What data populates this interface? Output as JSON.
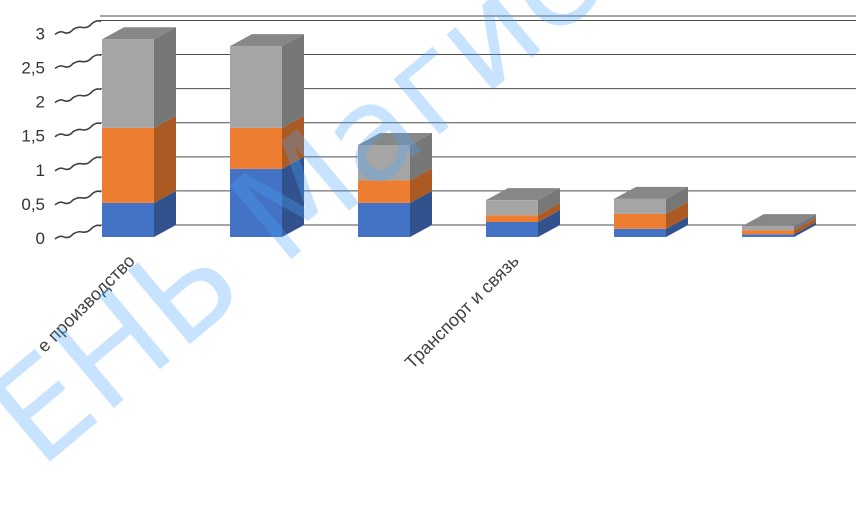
{
  "chart_data": {
    "type": "bar",
    "stacked": true,
    "three_d": true,
    "categories": [
      "",
      "",
      "",
      "",
      "",
      ""
    ],
    "x_tick_labels": [
      {
        "index": 0,
        "text": "е производство"
      },
      {
        "index": 3,
        "text": "Транспорт и связь"
      }
    ],
    "series": [
      {
        "color": "#4472c4",
        "values": [
          0.5,
          1.0,
          0.5,
          0.22,
          0.12,
          0.04
        ]
      },
      {
        "color": "#ed7d31",
        "values": [
          1.1,
          0.6,
          0.33,
          0.1,
          0.22,
          0.06
        ]
      },
      {
        "color": "#a5a5a5",
        "values": [
          1.3,
          1.2,
          0.52,
          0.22,
          0.22,
          0.06
        ]
      }
    ],
    "yticks": [
      "0",
      "0,5",
      "1",
      "1,5",
      "2",
      "2,5",
      "3"
    ],
    "ylim": [
      0,
      3.3
    ],
    "grid": true,
    "legend": "none",
    "title": "",
    "xlabel": "",
    "ylabel": ""
  },
  "watermark": {
    "text": "ЕНЬ Магистра",
    "color": "#4aa6ff"
  }
}
